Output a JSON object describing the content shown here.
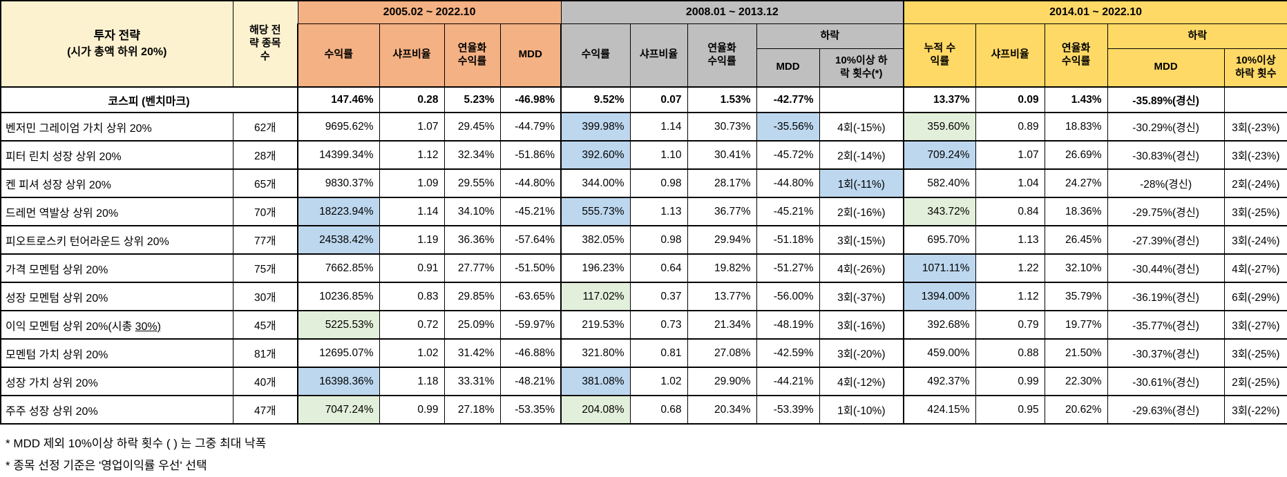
{
  "colors": {
    "orange": "#f4b183",
    "gray": "#bfbfbf",
    "yellow": "#ffd966",
    "cream": "#fdf2d0",
    "blue": "#bdd7ee",
    "green": "#e2efda"
  },
  "chart_data": {
    "type": "table",
    "header": {
      "col1_title": "투자 전략",
      "col1_subtitle": "(시가 총액 하위 20%)",
      "col2_label": "해당 전략 종목수",
      "periods": [
        {
          "label": "2005.02 ~ 2022.10",
          "cols": [
            "수익률",
            "샤프비율",
            "연율화 수익률",
            "MDD"
          ]
        },
        {
          "label": "2008.01 ~ 2013.12",
          "cols": [
            "수익률",
            "샤프비율",
            "연율화 수익률"
          ],
          "decline": {
            "label": "하락",
            "mdd": "MDD",
            "count": "10%이상 하락 횟수(*)"
          }
        },
        {
          "label": "2014.01 ~ 2022.10",
          "cols": [
            "누적 수익률",
            "샤프비율",
            "연율화 수익률"
          ],
          "decline": {
            "label": "하락",
            "mdd": "MDD",
            "count": "10%이상 하락 횟수"
          }
        }
      ]
    },
    "benchmark": {
      "name": "코스피 (벤치마크)",
      "count": "",
      "cells": [
        "147.46%",
        "0.28",
        "5.23%",
        "-46.98%",
        "9.52%",
        "0.07",
        "1.53%",
        "-42.77%",
        "",
        "13.37%",
        "0.09",
        "1.43%",
        "-35.89%(경신)",
        ""
      ],
      "highlights": {}
    },
    "rows": [
      {
        "name": "벤저민 그레이엄 가치 상위 20%",
        "count": "62개",
        "cells": [
          "9695.62%",
          "1.07",
          "29.45%",
          "-44.79%",
          "399.98%",
          "1.14",
          "30.73%",
          "-35.56%",
          "4회(-15%)",
          "359.60%",
          "0.89",
          "18.83%",
          "-30.29%(경신)",
          "3회(-23%)"
        ],
        "highlights": {
          "4": "blue",
          "7": "blue",
          "9": "green"
        }
      },
      {
        "name": "피터 린치 성장 상위 20%",
        "count": "28개",
        "cells": [
          "14399.34%",
          "1.12",
          "32.34%",
          "-51.86%",
          "392.60%",
          "1.10",
          "30.41%",
          "-45.72%",
          "2회(-14%)",
          "709.24%",
          "1.07",
          "26.69%",
          "-30.83%(경신)",
          "3회(-23%)"
        ],
        "highlights": {
          "4": "blue",
          "9": "blue"
        }
      },
      {
        "name": "켄 피셔 성장 상위 20%",
        "count": "65개",
        "cells": [
          "9830.37%",
          "1.09",
          "29.55%",
          "-44.80%",
          "344.00%",
          "0.98",
          "28.17%",
          "-44.80%",
          "1회(-11%)",
          "582.40%",
          "1.04",
          "24.27%",
          "-28%(경신)",
          "2회(-24%)"
        ],
        "highlights": {
          "8": "blue"
        }
      },
      {
        "name": "드레먼 역발상 상위 20%",
        "count": "70개",
        "cells": [
          "18223.94%",
          "1.14",
          "34.10%",
          "-45.21%",
          "555.73%",
          "1.13",
          "36.77%",
          "-45.21%",
          "2회(-16%)",
          "343.72%",
          "0.84",
          "18.36%",
          "-29.75%(경신)",
          "3회(-25%)"
        ],
        "highlights": {
          "0": "blue",
          "4": "blue",
          "9": "green"
        }
      },
      {
        "name": "피오트로스키 턴어라운드 상위 20%",
        "count": "77개",
        "cells": [
          "24538.42%",
          "1.19",
          "36.36%",
          "-57.64%",
          "382.05%",
          "0.98",
          "29.94%",
          "-51.18%",
          "3회(-15%)",
          "695.70%",
          "1.13",
          "26.45%",
          "-27.39%(경신)",
          "3회(-24%)"
        ],
        "highlights": {
          "0": "blue"
        }
      },
      {
        "name": "가격 모멘텀 상위 20%",
        "count": "75개",
        "cells": [
          "7662.85%",
          "0.91",
          "27.77%",
          "-51.50%",
          "196.23%",
          "0.64",
          "19.82%",
          "-51.27%",
          "4회(-26%)",
          "1071.11%",
          "1.22",
          "32.10%",
          "-30.44%(경신)",
          "4회(-27%)"
        ],
        "highlights": {
          "9": "blue"
        }
      },
      {
        "name": "성장 모멘텀 상위 20%",
        "count": "30개",
        "cells": [
          "10236.85%",
          "0.83",
          "29.85%",
          "-63.65%",
          "117.02%",
          "0.37",
          "13.77%",
          "-56.00%",
          "3회(-37%)",
          "1394.00%",
          "1.12",
          "35.79%",
          "-36.19%(경신)",
          "6회(-29%)"
        ],
        "highlights": {
          "4": "green",
          "9": "blue"
        }
      },
      {
        "name": "이익 모멘텀 상위 20%(시총 30%)",
        "count": "45개",
        "underline_part": "30%)",
        "cells": [
          "5225.53%",
          "0.72",
          "25.09%",
          "-59.97%",
          "219.53%",
          "0.73",
          "21.34%",
          "-48.19%",
          "3회(-16%)",
          "392.68%",
          "0.79",
          "19.77%",
          "-35.77%(경신)",
          "3회(-27%)"
        ],
        "highlights": {
          "0": "green"
        }
      },
      {
        "name": "모멘텀 가치 상위 20%",
        "count": "81개",
        "cells": [
          "12695.07%",
          "1.02",
          "31.42%",
          "-46.88%",
          "321.80%",
          "0.81",
          "27.08%",
          "-42.59%",
          "3회(-20%)",
          "459.00%",
          "0.88",
          "21.50%",
          "-30.37%(경신)",
          "3회(-25%)"
        ],
        "highlights": {}
      },
      {
        "name": "성장 가치 상위 20%",
        "count": "40개",
        "cells": [
          "16398.36%",
          "1.18",
          "33.31%",
          "-48.21%",
          "381.08%",
          "1.02",
          "29.90%",
          "-44.21%",
          "4회(-12%)",
          "492.37%",
          "0.99",
          "22.30%",
          "-30.61%(경신)",
          "2회(-25%)"
        ],
        "highlights": {
          "0": "blue",
          "4": "blue"
        }
      },
      {
        "name": "주주 성장 상위 20%",
        "count": "47개",
        "cells": [
          "7047.24%",
          "0.99",
          "27.18%",
          "-53.35%",
          "204.08%",
          "0.68",
          "20.34%",
          "-53.39%",
          "1회(-10%)",
          "424.15%",
          "0.95",
          "20.62%",
          "-29.63%(경신)",
          "3회(-22%)"
        ],
        "highlights": {
          "0": "green",
          "4": "green"
        }
      }
    ],
    "footnotes": [
      "* MDD 제외 10%이상 하락 횟수 ( ) 는 그중 최대 낙폭",
      "* 종목 선정 기준은 '영업이익률 우선' 선택"
    ]
  }
}
